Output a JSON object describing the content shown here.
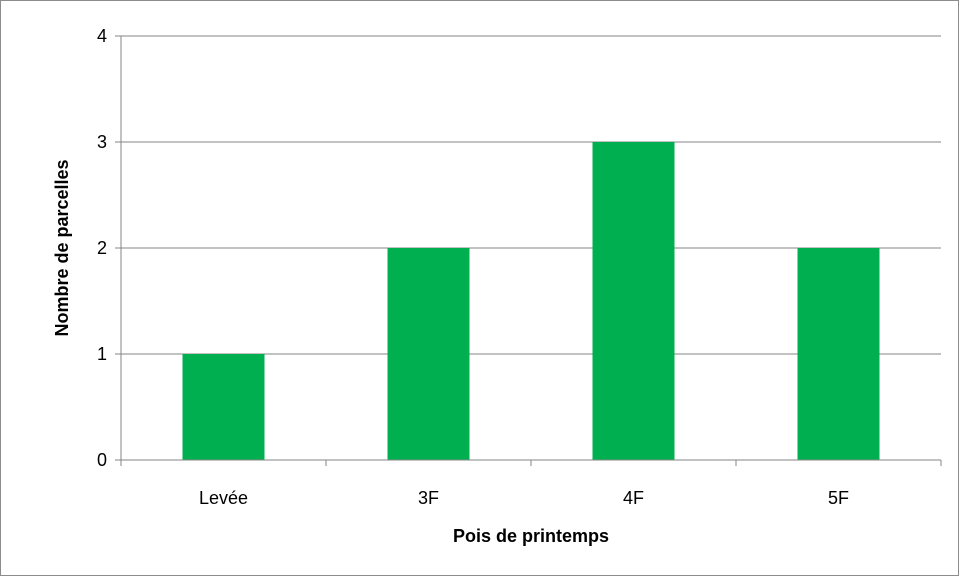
{
  "chart_data": {
    "type": "bar",
    "title": "",
    "xlabel": "Pois de printemps",
    "ylabel": "Nombre de parcelles",
    "categories": [
      "Levée",
      "3F",
      "4F",
      "5F"
    ],
    "values": [
      1,
      2,
      3,
      2
    ],
    "ylim": [
      0,
      4
    ],
    "yticks": [
      "0",
      "1",
      "2",
      "3",
      "4"
    ],
    "grid": true,
    "legend": "none",
    "bar_color": "#00b050"
  }
}
